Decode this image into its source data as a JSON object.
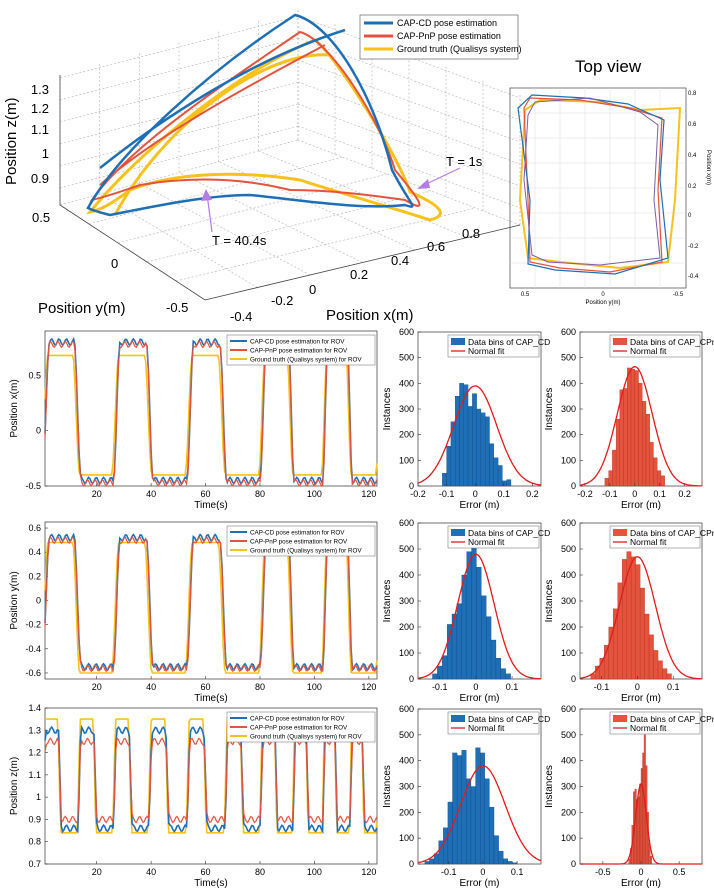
{
  "colors": {
    "cd": "#1f6fb6",
    "pnp": "#e5533d",
    "gt": "#f7c21c",
    "fit": "#e41a1c",
    "axis": "#555555"
  },
  "panel3d": {
    "legend": [
      "CAP-CD pose estimation",
      "CAP-PnP pose estimation",
      "Ground truth (Qualisys system)"
    ],
    "zlabel": "Position z(m)",
    "ylabel": "Position y(m)",
    "xlabel": "Position x(m)",
    "zticks": [
      "1.3",
      "1.2",
      "1.1",
      "1",
      "0.9"
    ],
    "yticks": [
      "0.5",
      "0",
      "-0.5"
    ],
    "xticks": [
      "-0.4",
      "-0.2",
      "0",
      "0.2",
      "0.4",
      "0.6",
      "0.8"
    ],
    "ann_end": "T = 1s",
    "ann_start": "T = 40.4s"
  },
  "topview": {
    "title": "Top view",
    "xlabel": "Position y(m)",
    "ylabel": "Position x(m)",
    "xticks": [
      "0.5",
      "0",
      "-0.5"
    ],
    "yticks": [
      "0.8",
      "0.6",
      "0.4",
      "0.2",
      "0",
      "-0.2",
      "-0.4"
    ]
  },
  "time_panels": [
    {
      "ylabel": "Position x(m)",
      "xlabel": "Time(s)",
      "legend": [
        "CAP-CD pose estimation for ROV",
        "CAP-PnP pose estimation for ROV",
        "Ground truth (Qualisys system) for ROV"
      ],
      "xticks": [
        "20",
        "40",
        "60",
        "80",
        "100",
        "120"
      ],
      "yticks": [
        "0.5",
        "0",
        "-0.5"
      ]
    },
    {
      "ylabel": "Position y(m)",
      "xlabel": "Time(s)",
      "legend": [
        "CAP-CD pose estimation for ROV",
        "CAP-PnP pose estimation for ROV",
        "Ground truth (Qualisys system) for ROV"
      ],
      "xticks": [
        "20",
        "40",
        "60",
        "80",
        "100",
        "120"
      ],
      "yticks": [
        "0.6",
        "0.4",
        "0.2",
        "0",
        "-0.2",
        "-0.4",
        "-0.6"
      ]
    },
    {
      "ylabel": "Position z(m)",
      "xlabel": "Time(s)",
      "legend": [
        "CAP-CD pose estimation for ROV",
        "CAP-PnP pose estimation for ROV",
        "Ground truth (Qualisys system) for ROV"
      ],
      "xticks": [
        "20",
        "40",
        "60",
        "80",
        "100",
        "120"
      ],
      "yticks": [
        "1.4",
        "1.3",
        "1.2",
        "1.1",
        "1",
        "0.9",
        "0.8",
        "0.7"
      ]
    }
  ],
  "histograms": [
    {
      "ylabel": "Instances",
      "xlabel": "Error (m)",
      "legend": [
        "Data bins of CAP_CD",
        "Normal fit"
      ],
      "xticks": [
        "-0.2",
        "-0.1",
        "0",
        "0.1",
        "0.2"
      ],
      "yticks": [
        "600",
        "500",
        "400",
        "300",
        "200",
        "100",
        "0"
      ]
    },
    {
      "ylabel": "Instances",
      "xlabel": "Error (m)",
      "legend": [
        "Data bins of CAP_CPnP",
        "Normal fit"
      ],
      "xticks": [
        "-0.2",
        "-0.1",
        "0",
        "0.1",
        "0.2"
      ],
      "yticks": [
        "600",
        "500",
        "400",
        "300",
        "200",
        "100",
        "0"
      ]
    },
    {
      "ylabel": "Instances",
      "xlabel": "Error (m)",
      "legend": [
        "Data bins of CAP_CD",
        "Normal fit"
      ],
      "xticks": [
        "-0.1",
        "0",
        "0.1"
      ],
      "yticks": [
        "600",
        "500",
        "400",
        "300",
        "200",
        "100",
        "0"
      ]
    },
    {
      "ylabel": "Instances",
      "xlabel": "Error (m)",
      "legend": [
        "Data bins of CAP_CPnP",
        "Normal fit"
      ],
      "xticks": [
        "-0.1",
        "0",
        "0.1"
      ],
      "yticks": [
        "600",
        "500",
        "400",
        "300",
        "200",
        "100",
        "0"
      ]
    },
    {
      "ylabel": "Instances",
      "xlabel": "Error (m)",
      "legend": [
        "Data bins of CAP_CD",
        "Normal fit"
      ],
      "xticks": [
        "-0.1",
        "0",
        "0.1"
      ],
      "yticks": [
        "600",
        "500",
        "400",
        "300",
        "200",
        "100",
        "0"
      ]
    },
    {
      "ylabel": "Instances",
      "xlabel": "Error (m)",
      "legend": [
        "Data bins of CAP_CPnP",
        "Normal fit"
      ],
      "xticks": [
        "-0.5",
        "0",
        "0.5"
      ],
      "yticks": [
        "600",
        "500",
        "400",
        "300",
        "200",
        "100",
        "0"
      ]
    }
  ],
  "chart_data": [
    {
      "type": "line",
      "xlabel": "Time(s)",
      "ylabel": "Position x(m)",
      "xlim": [
        1,
        123
      ],
      "ylim": [
        -0.5,
        0.9
      ],
      "periods": [
        26,
        27,
        27,
        23,
        20
      ],
      "series": [
        {
          "name": "CAP-CD pose estimation for ROV",
          "high": 0.8,
          "low": -0.45
        },
        {
          "name": "CAP-PnP pose estimation for ROV",
          "high": 0.78,
          "low": -0.47
        },
        {
          "name": "Ground truth (Qualisys system) for ROV",
          "high": 0.68,
          "low": -0.4
        }
      ]
    },
    {
      "type": "line",
      "xlabel": "Time(s)",
      "ylabel": "Position y(m)",
      "xlim": [
        1,
        123
      ],
      "ylim": [
        -0.65,
        0.65
      ],
      "periods": [
        26,
        27,
        27,
        23,
        20
      ],
      "series": [
        {
          "name": "CAP-CD pose estimation for ROV",
          "high": 0.52,
          "low": -0.55
        },
        {
          "name": "CAP-PnP pose estimation for ROV",
          "high": 0.5,
          "low": -0.56
        },
        {
          "name": "Ground truth (Qualisys system) for ROV",
          "high": 0.48,
          "low": -0.6
        }
      ]
    },
    {
      "type": "line",
      "xlabel": "Time(s)",
      "ylabel": "Position z(m)",
      "xlim": [
        1,
        123
      ],
      "ylim": [
        0.7,
        1.4
      ],
      "periods": [
        13,
        13,
        13,
        14,
        14,
        13,
        12,
        11,
        10
      ],
      "series": [
        {
          "name": "CAP-CD pose estimation for ROV",
          "high": 1.3,
          "low": 0.86
        },
        {
          "name": "CAP-PnP pose estimation for ROV",
          "high": 1.25,
          "low": 0.9
        },
        {
          "name": "Ground truth (Qualisys system) for ROV",
          "high": 1.35,
          "low": 0.84
        }
      ]
    },
    {
      "type": "bar",
      "xlabel": "Error (m)",
      "ylabel": "Instances",
      "xlim": [
        -0.2,
        0.23
      ],
      "ylim": [
        0,
        600
      ],
      "bin_start": -0.115,
      "bin_width": 0.015,
      "values": [
        50,
        155,
        250,
        350,
        400,
        395,
        310,
        360,
        300,
        285,
        270,
        165,
        110,
        80,
        20,
        25
      ],
      "fit": {
        "mean": 0.0,
        "std": 0.075,
        "peak": 390
      }
    },
    {
      "type": "bar",
      "xlabel": "Error (m)",
      "ylabel": "Instances",
      "xlim": [
        -0.22,
        0.27
      ],
      "ylim": [
        0,
        600
      ],
      "bin_start": -0.12,
      "bin_width": 0.015,
      "values": [
        30,
        60,
        140,
        260,
        375,
        380,
        460,
        455,
        450,
        400,
        330,
        280,
        170,
        110,
        60,
        40
      ],
      "fit": {
        "mean": 0.0,
        "std": 0.07,
        "peak": 465
      }
    },
    {
      "type": "bar",
      "xlabel": "Error (m)",
      "ylabel": "Instances",
      "xlim": [
        -0.16,
        0.18
      ],
      "ylim": [
        0,
        600
      ],
      "bin_start": -0.12,
      "bin_width": 0.0135,
      "values": [
        20,
        50,
        90,
        210,
        250,
        290,
        400,
        490,
        505,
        430,
        320,
        240,
        150,
        80,
        40,
        20
      ],
      "fit": {
        "mean": 0.0,
        "std": 0.05,
        "peak": 480
      }
    },
    {
      "type": "bar",
      "xlabel": "Error (m)",
      "ylabel": "Instances",
      "xlim": [
        -0.16,
        0.18
      ],
      "ylim": [
        0,
        600
      ],
      "bin_start": -0.13,
      "bin_width": 0.0125,
      "values": [
        20,
        50,
        80,
        130,
        200,
        270,
        370,
        460,
        490,
        470,
        440,
        350,
        250,
        170,
        110,
        70,
        40,
        20
      ],
      "fit": {
        "mean": 0.0,
        "std": 0.05,
        "peak": 470
      }
    },
    {
      "type": "bar",
      "xlabel": "Error (m)",
      "ylabel": "Instances",
      "xlim": [
        -0.19,
        0.17
      ],
      "ylim": [
        0,
        600
      ],
      "bin_start": -0.17,
      "bin_width": 0.0135,
      "values": [
        10,
        20,
        40,
        90,
        140,
        240,
        430,
        420,
        440,
        330,
        300,
        450,
        430,
        330,
        220,
        110,
        50,
        20,
        10,
        5
      ],
      "fit": {
        "mean": 0.0,
        "std": 0.065,
        "peak": 380
      }
    },
    {
      "type": "bar",
      "xlabel": "Error (m)",
      "ylabel": "Instances",
      "xlim": [
        -0.8,
        0.8
      ],
      "ylim": [
        0,
        600
      ],
      "bin_start": -0.16,
      "bin_width": 0.02,
      "values": [
        20,
        60,
        150,
        280,
        290,
        250,
        260,
        310,
        370,
        430,
        500,
        380,
        200,
        80,
        30
      ],
      "fit": {
        "mean": 0.0,
        "std": 0.07,
        "peak": 310
      }
    },
    {
      "type": "line",
      "title": "Top view",
      "xlabel": "Position y(m)",
      "ylabel": "Position x(m)",
      "xlim": [
        0.6,
        -0.6
      ],
      "ylim": [
        -0.5,
        0.85
      ]
    }
  ]
}
